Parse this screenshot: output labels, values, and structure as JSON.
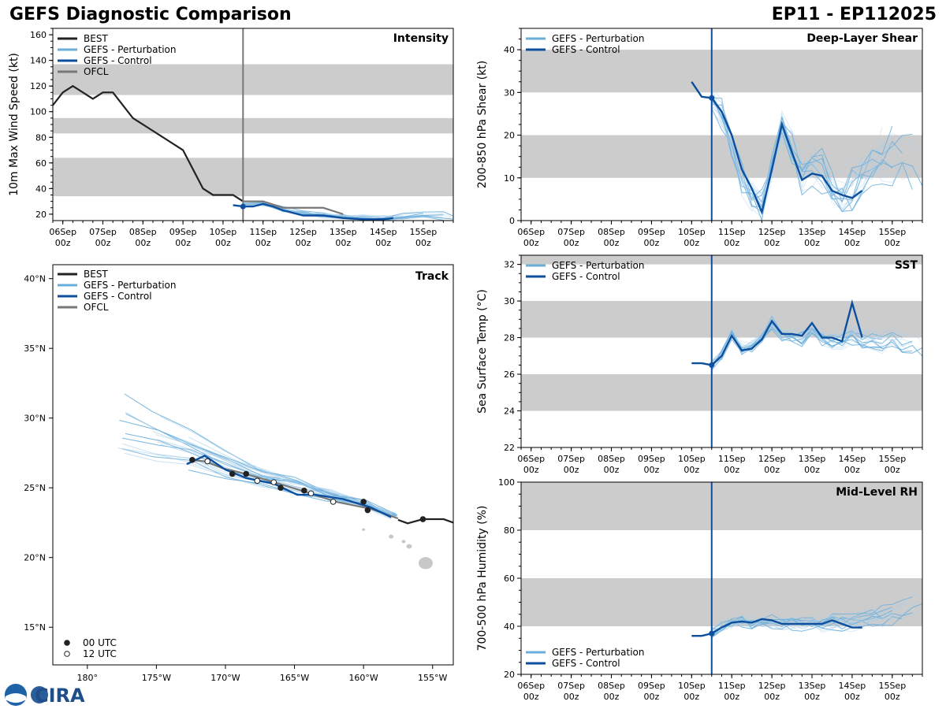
{
  "header": {
    "left_title": "GEFS Diagnostic Comparison",
    "right_title": "EP11 - EP112025",
    "logo_text": "CIRA"
  },
  "colors": {
    "best": "#222222",
    "pert": "#6aaedb",
    "control": "#0b4f9e",
    "ofcl": "#777777",
    "band": "#cccccc",
    "init_line": "#0b4f9e"
  },
  "time_axis": {
    "tick_labels": [
      [
        "06Sep",
        "00z"
      ],
      [
        "07Sep",
        "00z"
      ],
      [
        "08Sep",
        "00z"
      ],
      [
        "09Sep",
        "00z"
      ],
      [
        "10Sep",
        "00z"
      ],
      [
        "11Sep",
        "00z"
      ],
      [
        "12Sep",
        "00z"
      ],
      [
        "13Sep",
        "00z"
      ],
      [
        "14Sep",
        "00z"
      ],
      [
        "15Sep",
        "00z"
      ]
    ],
    "xlim_days": [
      -0.25,
      9.75
    ],
    "init_day": 4.5
  },
  "chart_data": [
    {
      "id": "intensity",
      "type": "line",
      "title": "Intensity",
      "ylabel": "10m Max Wind Speed (kt)",
      "ylim": [
        15,
        165
      ],
      "yticks": [
        20,
        40,
        60,
        80,
        100,
        120,
        140,
        160
      ],
      "bands": [
        [
          34,
          64
        ],
        [
          83,
          95
        ],
        [
          113,
          137
        ]
      ],
      "legend": [
        "BEST",
        "GEFS - Perturbation",
        "GEFS - Control",
        "OFCL"
      ],
      "legend_position": "top-left",
      "best": {
        "x": [
          -0.25,
          0.0,
          0.25,
          0.5,
          0.75,
          1.0,
          1.25,
          1.75,
          2.25,
          3.0,
          3.5,
          3.75,
          4.0,
          4.25,
          4.5
        ],
        "y": [
          105,
          115,
          120,
          115,
          110,
          115,
          115,
          95,
          85,
          70,
          40,
          35,
          35,
          35,
          30
        ]
      },
      "ofcl": {
        "x": [
          4.5,
          5.0,
          5.5,
          6.0,
          6.5,
          7.0
        ],
        "y": [
          30,
          30,
          25,
          25,
          25,
          20
        ]
      },
      "control": {
        "x": [
          4.25,
          4.5,
          4.75,
          5.0,
          5.25,
          5.5,
          6.0,
          6.5,
          7.0,
          7.5,
          8.0,
          8.25
        ],
        "y": [
          27,
          26,
          26,
          28,
          26,
          23,
          19,
          19,
          17,
          16,
          16,
          17
        ]
      },
      "perturbation_mean": {
        "x": [
          4.5,
          5.0,
          5.5,
          6.0,
          6.5,
          7.0,
          7.5,
          8.0,
          8.5,
          9.0,
          9.5,
          9.75
        ],
        "y": [
          27,
          28,
          24,
          21,
          19,
          18,
          17,
          17,
          18,
          19,
          19,
          18
        ]
      },
      "perturbation_spread": 4
    },
    {
      "id": "shear",
      "type": "line",
      "title": "Deep-Layer Shear",
      "ylabel": "200-850 hPa Shear (kt)",
      "ylim": [
        0,
        45
      ],
      "yticks": [
        0,
        10,
        20,
        30,
        40
      ],
      "bands": [
        [
          10,
          20
        ],
        [
          30,
          40
        ]
      ],
      "legend": [
        "GEFS - Perturbation",
        "GEFS - Control"
      ],
      "legend_position": "top-left",
      "control": {
        "x": [
          4.0,
          4.25,
          4.5,
          4.75,
          5.0,
          5.25,
          5.5,
          5.75,
          6.0,
          6.25,
          6.5,
          6.75,
          7.0,
          7.25,
          7.5,
          7.75,
          8.0,
          8.25
        ],
        "y": [
          32.5,
          29,
          28.7,
          25.5,
          20,
          12,
          7.5,
          2,
          12,
          22.5,
          16,
          9.5,
          11,
          10.5,
          7,
          6,
          5.3,
          7
        ]
      },
      "perturbation_mean": {
        "x": [
          4.5,
          4.75,
          5.0,
          5.25,
          5.5,
          5.75,
          6.0,
          6.25,
          6.5,
          6.75,
          7.0,
          7.25,
          7.5,
          7.75,
          8.0,
          8.25,
          8.5,
          8.75,
          9.0,
          9.25,
          9.5,
          9.75
        ],
        "y": [
          28,
          25,
          18,
          10,
          6,
          4,
          12,
          22,
          17,
          11,
          13,
          12,
          8,
          6,
          8,
          11,
          13,
          15,
          16,
          15,
          14,
          13
        ]
      },
      "perturbation_spread": 8
    },
    {
      "id": "sst",
      "type": "line",
      "title": "SST",
      "ylabel": "Sea Surface Temp (°C)",
      "ylim": [
        22,
        32.5
      ],
      "yticks": [
        22,
        24,
        26,
        28,
        30,
        32
      ],
      "bands": [
        [
          24,
          26
        ],
        [
          28,
          30
        ],
        [
          32,
          34
        ]
      ],
      "legend": [
        "GEFS - Perturbation",
        "GEFS - Control"
      ],
      "legend_position": "top-left",
      "control": {
        "x": [
          4.0,
          4.25,
          4.5,
          4.75,
          5.0,
          5.25,
          5.5,
          5.75,
          6.0,
          6.25,
          6.5,
          6.75,
          7.0,
          7.25,
          7.5,
          7.75,
          8.0,
          8.25
        ],
        "y": [
          26.6,
          26.6,
          26.5,
          27.0,
          28.1,
          27.3,
          27.4,
          27.9,
          28.9,
          28.2,
          28.2,
          28.1,
          28.8,
          28.0,
          28.0,
          27.8,
          29.9,
          28.0
        ]
      },
      "perturbation_mean": {
        "x": [
          4.5,
          4.75,
          5.0,
          5.25,
          5.5,
          5.75,
          6.0,
          6.25,
          6.5,
          6.75,
          7.0,
          7.25,
          7.5,
          7.75,
          8.0,
          8.25,
          8.5,
          8.75,
          9.0,
          9.25,
          9.5,
          9.75
        ],
        "y": [
          26.5,
          27.0,
          28.2,
          27.4,
          27.5,
          28.0,
          28.8,
          28.2,
          28.1,
          28.0,
          28.4,
          28.0,
          27.9,
          27.9,
          28.2,
          27.9,
          27.9,
          27.8,
          28.0,
          27.8,
          27.7,
          27.6
        ]
      },
      "perturbation_spread": 0.7
    },
    {
      "id": "rh",
      "type": "line",
      "title": "Mid-Level RH",
      "ylabel": "700-500 hPa Humidity (%)",
      "ylim": [
        20,
        100
      ],
      "yticks": [
        20,
        40,
        60,
        80,
        100
      ],
      "bands": [
        [
          40,
          60
        ],
        [
          80,
          100
        ]
      ],
      "legend": [
        "GEFS - Perturbation",
        "GEFS - Control"
      ],
      "legend_position": "bottom-left",
      "control": {
        "x": [
          4.0,
          4.25,
          4.5,
          4.75,
          5.0,
          5.25,
          5.5,
          5.75,
          6.0,
          6.25,
          6.5,
          6.75,
          7.0,
          7.25,
          7.5,
          7.75,
          8.0,
          8.25
        ],
        "y": [
          36,
          36,
          37,
          39.5,
          41.5,
          42,
          41.5,
          43,
          42.5,
          41,
          41,
          41,
          41,
          41,
          42.5,
          41,
          39.5,
          39.5
        ]
      },
      "perturbation_mean": {
        "x": [
          4.5,
          4.75,
          5.0,
          5.25,
          5.5,
          5.75,
          6.0,
          6.25,
          6.5,
          6.75,
          7.0,
          7.25,
          7.5,
          7.75,
          8.0,
          8.25,
          8.5,
          8.75,
          9.0,
          9.25,
          9.5,
          9.75
        ],
        "y": [
          37,
          40,
          42,
          42,
          41,
          42,
          42,
          41,
          41,
          41,
          41,
          41,
          42,
          42,
          42,
          43,
          44,
          44,
          45,
          46,
          48,
          50
        ]
      },
      "perturbation_spread": 5
    },
    {
      "id": "track",
      "type": "map",
      "title": "Track",
      "legend": [
        "BEST",
        "GEFS - Perturbation",
        "GEFS - Control",
        "OFCL"
      ],
      "marker_legend": [
        "00 UTC",
        "12 UTC"
      ],
      "lon_range": [
        -182.5,
        -153.5
      ],
      "lat_range": [
        12.3,
        41
      ],
      "lon_ticks": [
        -180,
        -175,
        -170,
        -165,
        -160,
        -155
      ],
      "lon_tick_labels": [
        "180°",
        "175°W",
        "170°W",
        "165°W",
        "160°W",
        "155°W"
      ],
      "lat_ticks": [
        15,
        20,
        25,
        30,
        35,
        40
      ],
      "lat_tick_labels": [
        "15°N",
        "20°N",
        "25°N",
        "30°N",
        "35°N",
        "40°N"
      ],
      "best": {
        "lon": [
          -153.5,
          -154.2,
          -155.7,
          -156.8,
          -157.5
        ],
        "lat": [
          22.5,
          22.75,
          22.75,
          22.45,
          22.7
        ]
      },
      "best_points": {
        "lon": [
          -155.7
        ],
        "lat": [
          22.75
        ],
        "kind": [
          "00"
        ]
      },
      "ofcl": {
        "lon": [
          -157.5,
          -159.5,
          -162.0,
          -164.5,
          -166.5,
          -168.5,
          -170.2,
          -171.5,
          -172.5
        ],
        "lat": [
          22.8,
          23.5,
          24.0,
          24.8,
          25.4,
          26.0,
          26.4,
          26.9,
          27.0
        ]
      },
      "ofcl_points": {
        "lon": [
          -159.7,
          -160.0,
          -162.2,
          -163.8,
          -164.3,
          -166.0,
          -166.5,
          -167.7,
          -168.5,
          -169.5,
          -171.3,
          -172.4
        ],
        "lat": [
          23.4,
          24.0,
          24.0,
          24.6,
          24.8,
          25.0,
          25.4,
          25.5,
          26.0,
          26.0,
          26.9,
          27.0
        ],
        "kind": [
          "00",
          "00",
          "12",
          "12",
          "00",
          "00",
          "12",
          "12",
          "00",
          "00",
          "12",
          "00"
        ]
      },
      "control": {
        "lon": [
          -158.0,
          -159.5,
          -161.5,
          -163.5,
          -164.8,
          -166.5,
          -168.5,
          -170.0,
          -171.5,
          -172.8
        ],
        "lat": [
          22.9,
          23.6,
          24.2,
          24.5,
          24.5,
          25.3,
          25.7,
          26.3,
          27.3,
          26.7
        ]
      },
      "perturbation_mean": {
        "lon": [
          -157.8,
          -160.0,
          -162.5,
          -165.0,
          -167.5,
          -170.0,
          -172.5,
          -175.0,
          -177.5
        ],
        "lat": [
          23.0,
          23.8,
          24.4,
          25.0,
          25.6,
          26.3,
          27.2,
          27.8,
          28.4
        ]
      },
      "perturbation_spread_deg": 2.2,
      "hawaii": {
        "lon": [
          -155.5,
          -156.7,
          -157.1,
          -158.0,
          -160.0
        ],
        "lat": [
          19.6,
          20.8,
          21.15,
          21.5,
          22.0
        ]
      }
    }
  ]
}
